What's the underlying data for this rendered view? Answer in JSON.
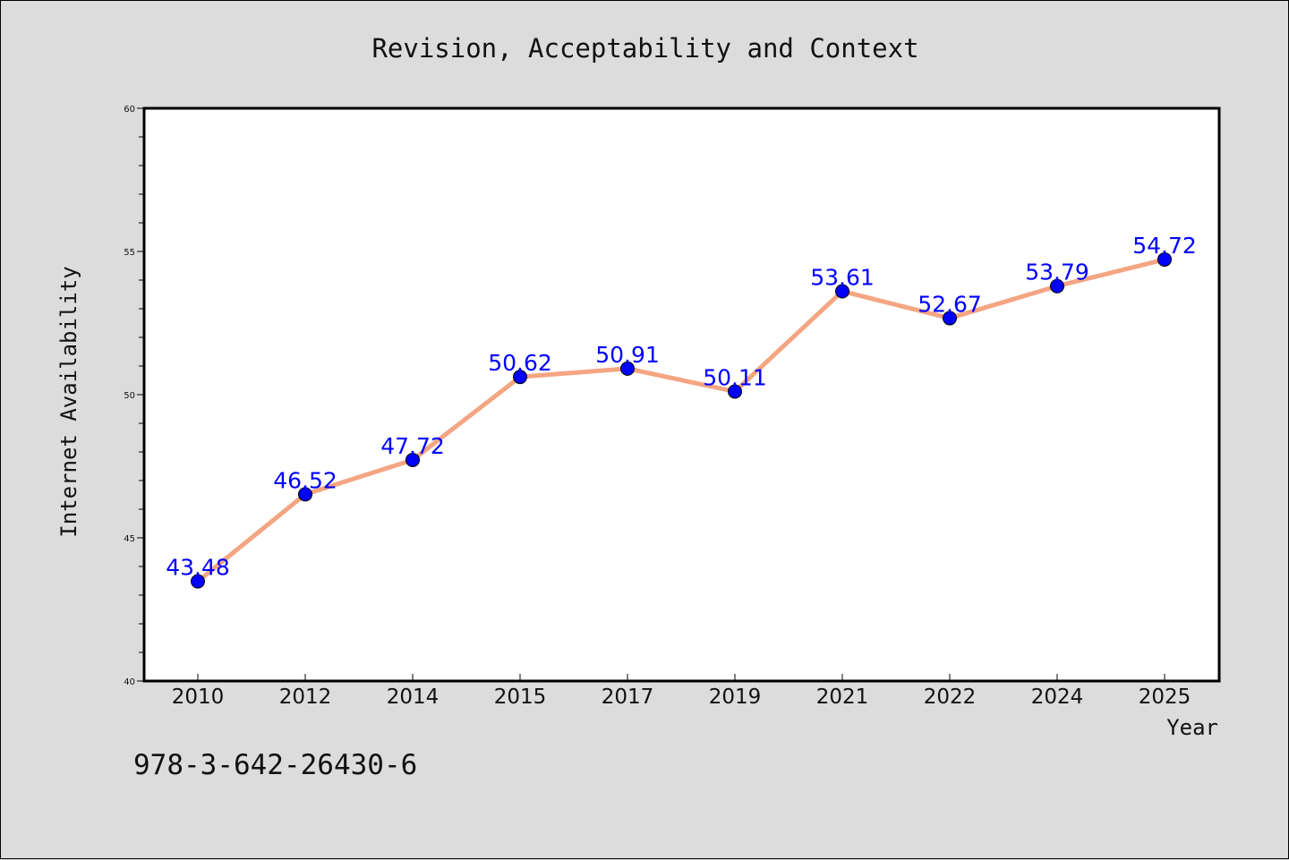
{
  "chart_data": {
    "type": "line",
    "title": "Revision, Acceptability and Context",
    "xlabel": "Year",
    "ylabel": "Internet Availability",
    "categories": [
      "2010",
      "2012",
      "2014",
      "2015",
      "2017",
      "2019",
      "2021",
      "2022",
      "2024",
      "2025"
    ],
    "series": [
      {
        "values": [
          43.48,
          46.52,
          47.72,
          50.62,
          50.91,
          50.11,
          53.61,
          52.67,
          53.79,
          54.72
        ],
        "data_labels": [
          "43.48",
          "46.52",
          "47.72",
          "50.62",
          "50.91",
          "50.11",
          "53.61",
          "52.67",
          "53.79",
          "54.72"
        ]
      }
    ],
    "ylim": [
      40,
      60
    ],
    "yticks": [
      "40",
      "45",
      "50",
      "55",
      "60"
    ],
    "grid": false,
    "legend": "none",
    "line_color": "#f4a582",
    "marker_color": "#0000ff",
    "label_color": "#0000ff"
  },
  "footer_text": "978-3-642-26430-6"
}
